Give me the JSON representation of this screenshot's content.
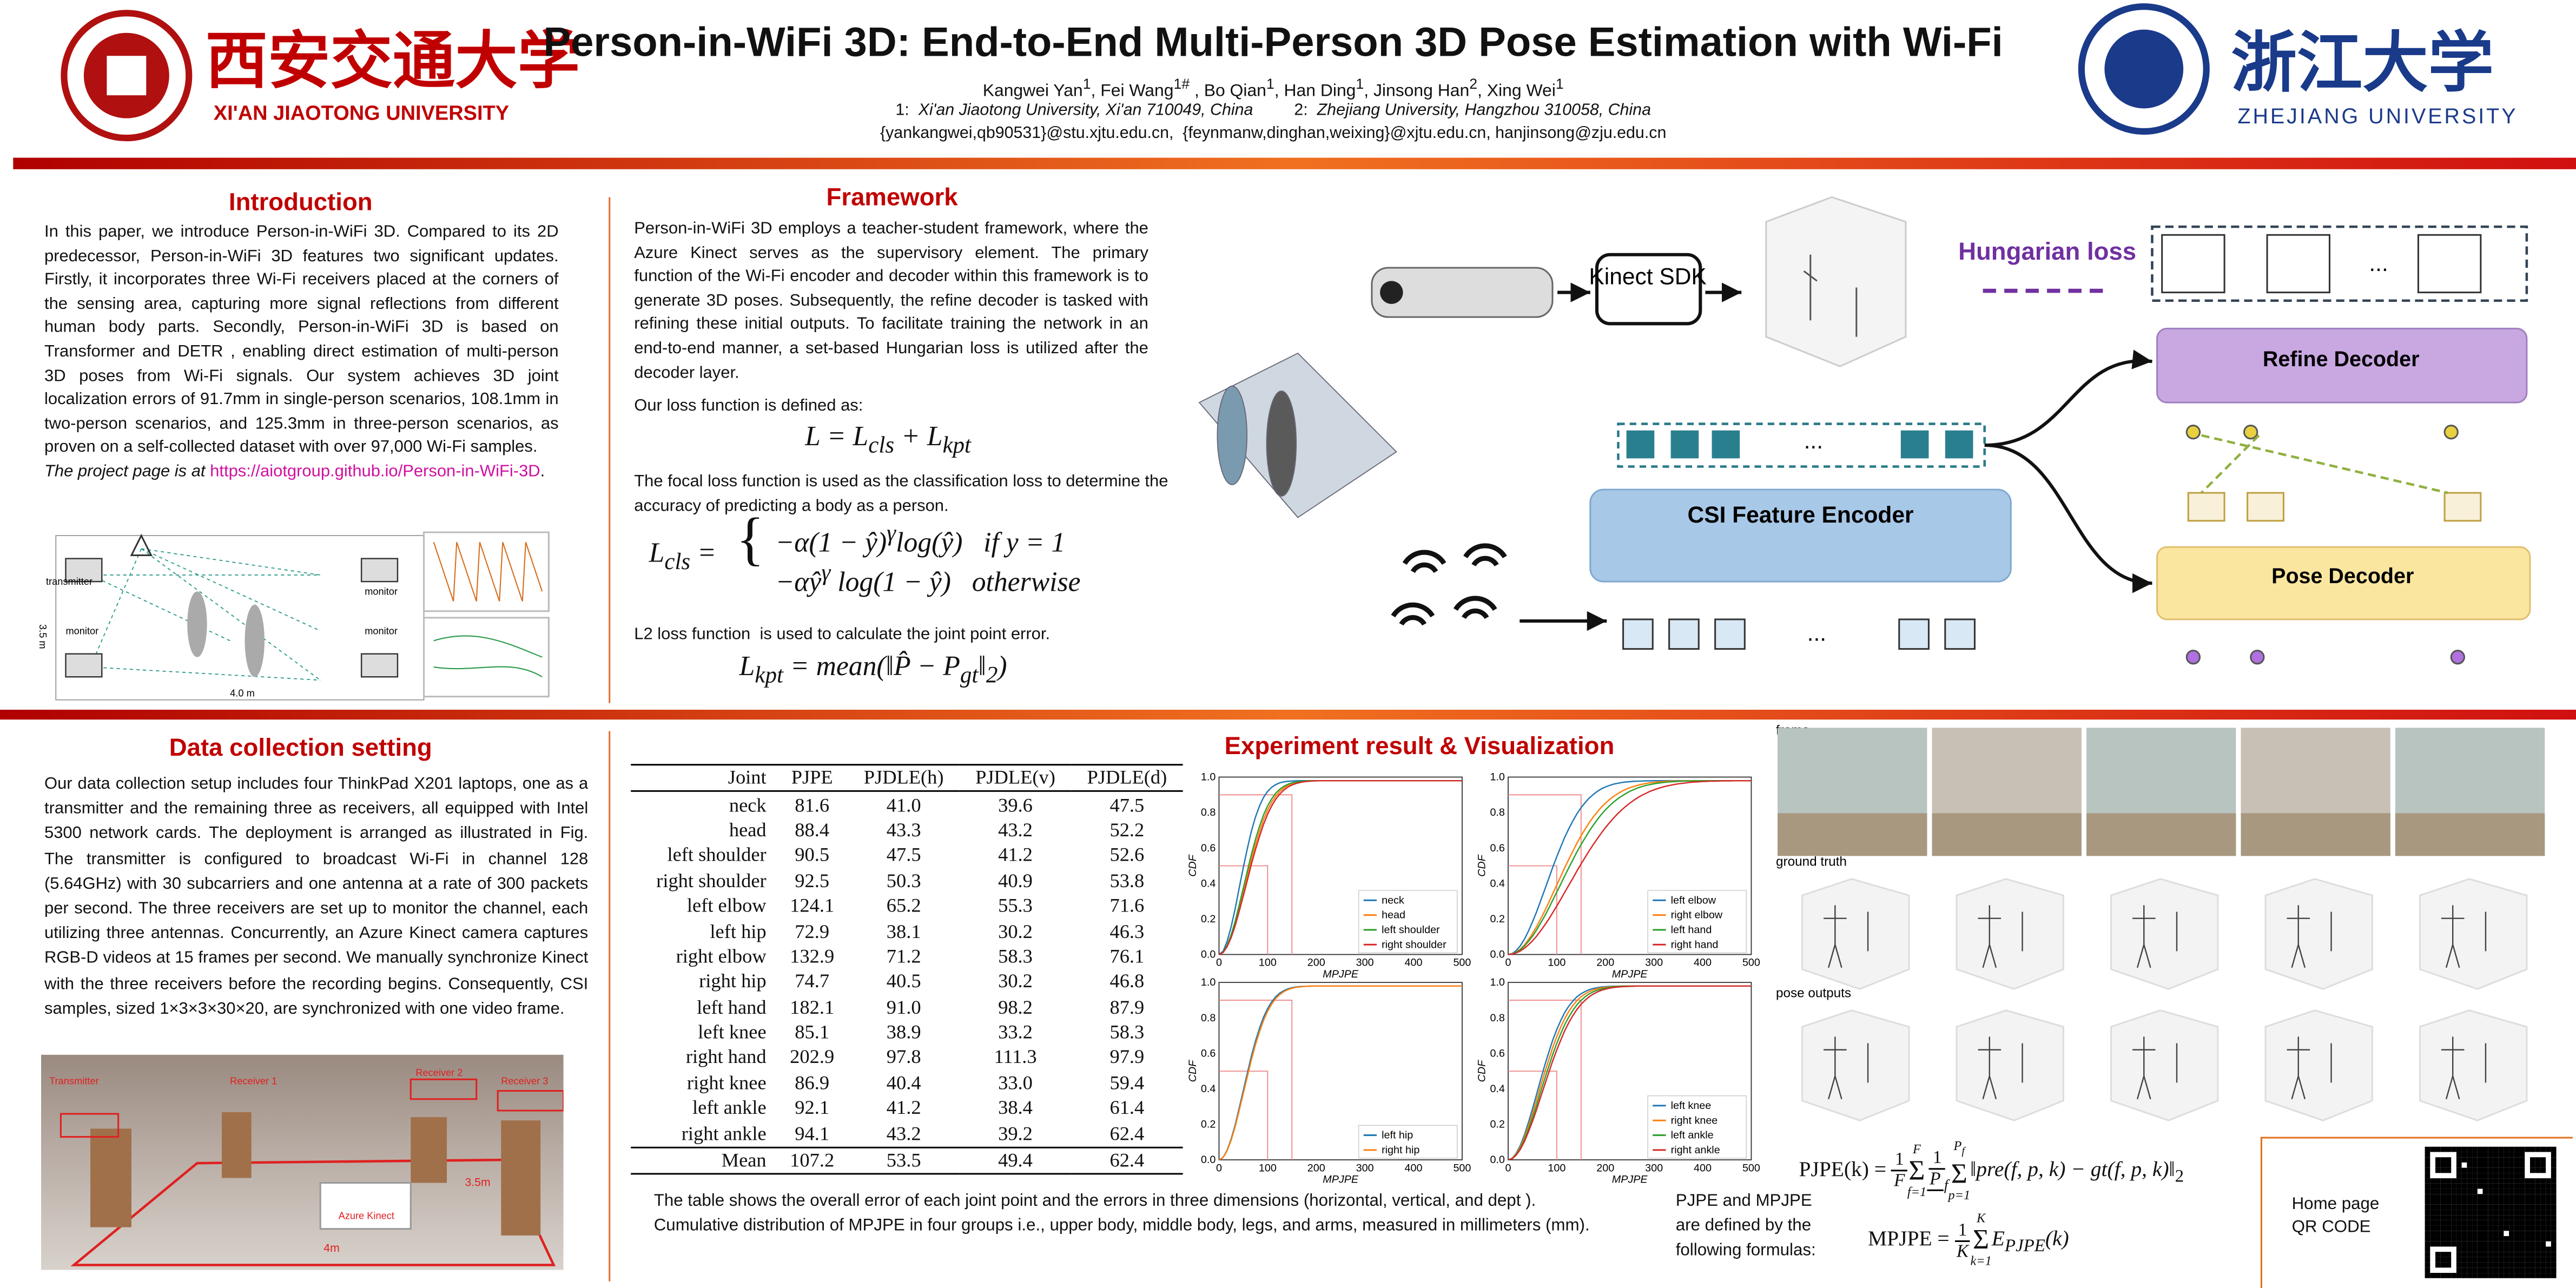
{
  "header": {
    "logo_left_cn": "西安交通大学",
    "logo_left_en": "XI'AN JIAOTONG UNIVERSITY",
    "title": "Person-in-WiFi 3D: End-to-End Multi-Person 3D Pose Estimation with Wi-Fi",
    "authors": [
      "Kangwei Yan",
      "1",
      ", Fei Wang",
      "1#",
      " , Bo Qian",
      "1",
      ", Han Ding",
      "1",
      ", Jinsong Han",
      "2",
      ", Xing Wei",
      "1"
    ],
    "affiliations": [
      {
        "num": "1:",
        "text": "Xi'an Jiaotong University, Xi'an 710049, China"
      },
      {
        "num": "2:",
        "text": "Zhejiang University, Hangzhou 310058, China"
      }
    ],
    "emails": "{yankangwei,qb90531}@stu.xjtu.edu.cn,  {feynmanw,dinghan,weixing}@xjtu.edu.cn, hanjinsong@zju.edu.cn",
    "logo_right_cn": "浙江大学",
    "logo_right_en": "ZHEJIANG UNIVERSITY"
  },
  "introduction": {
    "title": "Introduction",
    "text": "In this paper, we introduce Person-in-WiFi 3D. Compared to its 2D predecessor, Person-in-WiFi 3D features two significant updates. Firstly, it incorporates three Wi-Fi receivers placed at the corners of the sensing area, capturing more signal reflections from different human body parts. Secondly, Person-in-WiFi 3D is based on Transformer and DETR , enabling direct estimation of multi-person 3D poses from Wi-Fi signals. Our system achieves 3D joint localization errors of 91.7mm in single-person scenarios, 108.1mm in two-person scenarios, and 125.3mm in three-person scenarios, as proven on a self-collected dataset with over 97,000 Wi-Fi samples.",
    "project_prefix": "The project page is at ",
    "project_link": "https://aiotgroup.github.io/Person-in-WiFi-3D",
    "project_suffix": ".",
    "figure_labels": [
      "transmitter",
      "monitor",
      "monitor",
      "monitor",
      "4.0 m",
      "3.5 m"
    ]
  },
  "framework": {
    "title": "Framework",
    "text": "Person-in-WiFi 3D employs a teacher-student framework, where the Azure Kinect serves as the supervisory element. The primary function of the Wi-Fi encoder and decoder within this framework is to generate 3D poses. Subsequently, the refine decoder is tasked with refining these initial outputs. To facilitate training the network in an end-to-end manner, a set-based Hungarian loss is utilized after the decoder layer.",
    "loss_intro": "Our loss function is defined as:",
    "eq_loss": [
      "L = L",
      "cls",
      " + L",
      "kpt"
    ],
    "focal_text": "The focal loss function is used as the classification loss to determine the accuracy of predicting a body as a person.",
    "eq_cls": {
      "lhs": [
        "L",
        "cls",
        " ="
      ],
      "line1": [
        "−α(1 − ŷ)",
        "γ",
        "log(ŷ)",
        "if y = 1"
      ],
      "line2": [
        "−αŷ",
        "γ",
        " log(1 − ŷ)",
        "otherwise"
      ]
    },
    "l2_text": "L2 loss function  is used to calculate the joint point error.",
    "eq_kpt": [
      "L",
      "kpt",
      " = mean(‖P̂ − P",
      "gt",
      "‖",
      "2",
      ")"
    ],
    "diagram": {
      "kinect": "Kinect SDK",
      "hungarian": "Hungarian loss",
      "refine": "Refine Decoder",
      "encoder": "CSI Feature Encoder",
      "pose": "Pose Decoder",
      "ellipsis": "..."
    }
  },
  "data_collection": {
    "title": "Data collection setting",
    "text": "Our data collection setup includes four ThinkPad X201 laptops, one as a transmitter and the remaining three as receivers, all equipped with Intel 5300 network cards. The deployment is arranged as illustrated in Fig. The transmitter is configured to broadcast Wi-Fi in channel 128 (5.64GHz) with 30 subcarriers and one antenna at a rate of 300 packets per second. The three receivers are set up to monitor the channel, each utilizing three antennas. Concurrently, an Azure Kinect camera captures RGB-D videos at 15 frames per second. We manually synchronize Kinect with the three receivers before the recording begins. Consequently, CSI samples, sized 1×3×3×30×20, are synchronized with one video frame.",
    "photo_labels": [
      "Transmitter",
      "Receiver 1",
      "Receiver 2",
      "Receiver 3",
      "Azure Kinect",
      "3.5m",
      "4m"
    ]
  },
  "experiment": {
    "title": "Experiment result & Visualization",
    "table": {
      "header": [
        "Joint",
        "PJPE",
        "PJDLE(h)",
        "PJDLE(v)",
        "PJDLE(d)"
      ],
      "rows": [
        [
          "neck",
          "81.6",
          "41.0",
          "39.6",
          "47.5"
        ],
        [
          "head",
          "88.4",
          "43.3",
          "43.2",
          "52.2"
        ],
        [
          "left shoulder",
          "90.5",
          "47.5",
          "41.2",
          "52.6"
        ],
        [
          "right shoulder",
          "92.5",
          "50.3",
          "40.9",
          "53.8"
        ],
        [
          "left elbow",
          "124.1",
          "65.2",
          "55.3",
          "71.6"
        ],
        [
          "left hip",
          "72.9",
          "38.1",
          "30.2",
          "46.3"
        ],
        [
          "right elbow",
          "132.9",
          "71.2",
          "58.3",
          "76.1"
        ],
        [
          "right hip",
          "74.7",
          "40.5",
          "30.2",
          "46.8"
        ],
        [
          "left hand",
          "182.1",
          "91.0",
          "98.2",
          "87.9"
        ],
        [
          "left knee",
          "85.1",
          "38.9",
          "33.2",
          "58.3"
        ],
        [
          "right hand",
          "202.9",
          "97.8",
          "111.3",
          "97.9"
        ],
        [
          "right knee",
          "86.9",
          "40.4",
          "33.0",
          "59.4"
        ],
        [
          "left ankle",
          "92.1",
          "41.2",
          "38.4",
          "61.4"
        ],
        [
          "right ankle",
          "94.1",
          "43.2",
          "39.2",
          "62.4"
        ],
        [
          "Mean",
          "107.2",
          "53.5",
          "49.4",
          "62.4"
        ]
      ]
    },
    "caption": [
      "The table shows the overall error of each joint point and the errors in three dimensions (horizontal, vertical, and dept ).",
      "Cumulative distribution of MPJPE in four groups i.e., upper body, middle body, legs, and arms,  measured in millimeters (mm)."
    ],
    "cdf": {
      "xlabel": "MPJPE",
      "ylabel": "CDF",
      "xticks": [
        "0",
        "100",
        "200",
        "300",
        "400",
        "500"
      ],
      "yticks": [
        "0.0",
        "0.2",
        "0.4",
        "0.6",
        "0.8",
        "1.0"
      ],
      "panels": [
        {
          "legend": [
            "neck",
            "head",
            "left shoulder",
            "right shoulder"
          ]
        },
        {
          "legend": [
            "left elbow",
            "right elbow",
            "left hand",
            "right hand"
          ]
        },
        {
          "legend": [
            "left hip",
            "right hip"
          ]
        },
        {
          "legend": [
            "left knee",
            "right knee",
            "left ankle",
            "right ankle"
          ]
        }
      ]
    },
    "vis_labels": [
      "frame",
      "ground truth",
      "pose outputs"
    ],
    "formula_note": "PJPE and MPJPE are defined by the following formulas:",
    "pjpe": [
      "PJPE(k) = ",
      "1",
      "F",
      "F",
      "f=1",
      "1",
      "P",
      "f",
      "P",
      "f",
      "p=1",
      "‖pre(f, p, k) − gt(f, p, k)‖",
      "2"
    ],
    "mpjpe": [
      "MPJPE = ",
      "1",
      "K",
      "K",
      "k=1",
      "E",
      "PJPE",
      "(k)"
    ],
    "qr_label": "Home page QR CODE"
  }
}
